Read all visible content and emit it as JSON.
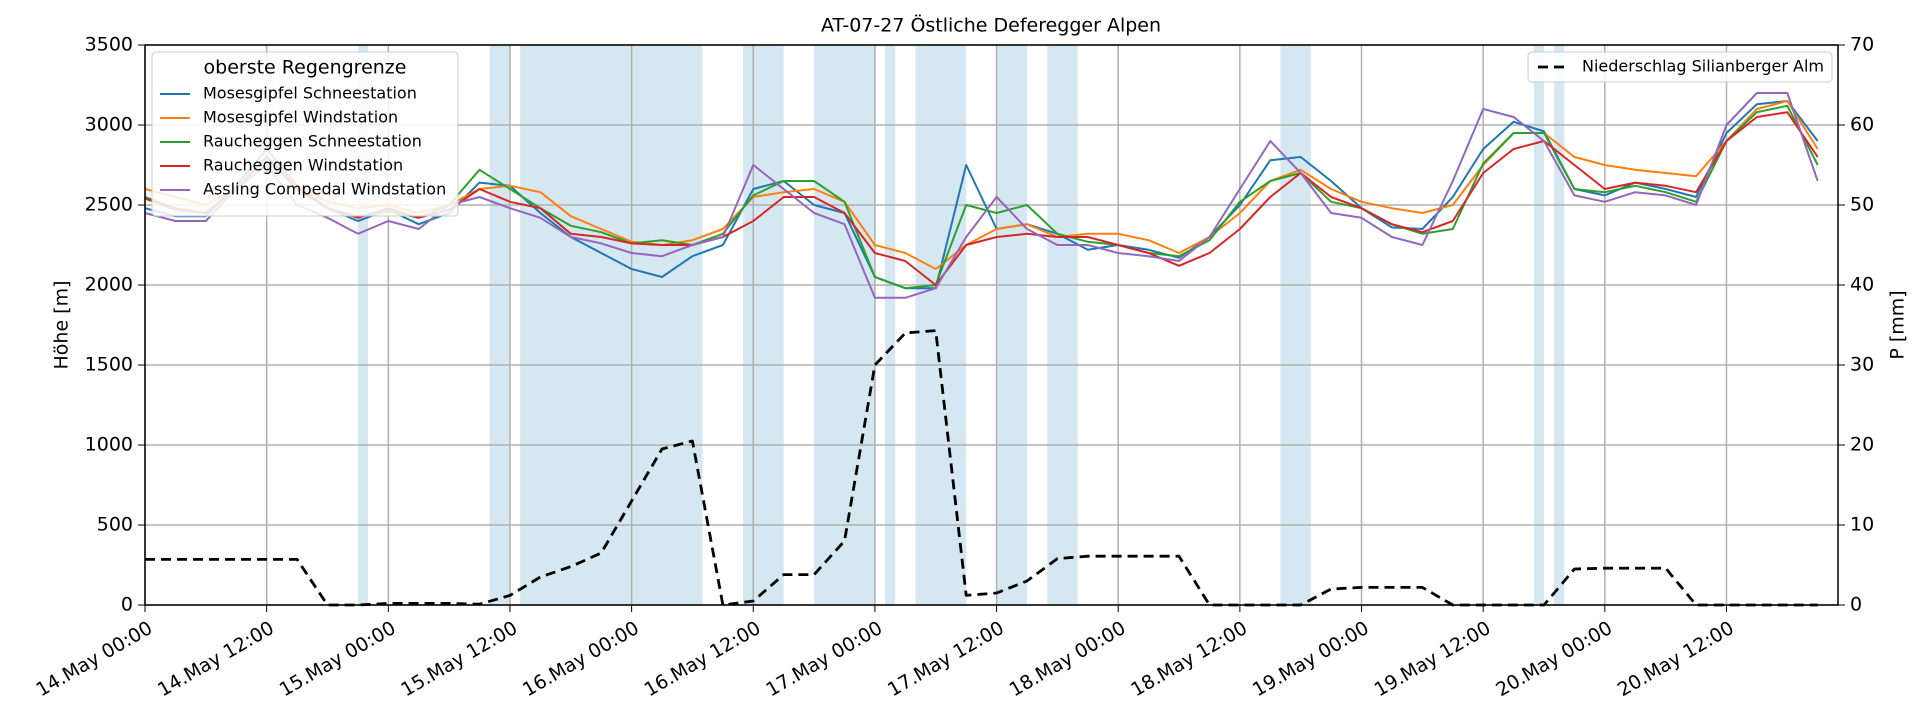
{
  "chart_data": {
    "type": "line",
    "title": "AT-07-27 Östliche Deferegger Alpen",
    "ylabel": "Höhe [m]",
    "y2label": "P [mm]",
    "legend_title": "oberste  Regengrenze",
    "legend": "upper left",
    "grid": true,
    "xlim": [
      "14.May 00:00",
      "20.May 23:00"
    ],
    "xticks": [
      "14.May 00:00",
      "14.May 12:00",
      "15.May 00:00",
      "15.May 12:00",
      "16.May 00:00",
      "16.May 12:00",
      "17.May 00:00",
      "17.May 12:00",
      "18.May 00:00",
      "18.May 12:00",
      "19.May 00:00",
      "19.May 12:00",
      "20.May 00:00",
      "20.May 12:00"
    ],
    "ylim": [
      0,
      3500
    ],
    "yticks": [
      0,
      500,
      1000,
      1500,
      2000,
      2500,
      3000,
      3500
    ],
    "y2lim": [
      0,
      70
    ],
    "y2ticks": [
      0,
      10,
      20,
      30,
      40,
      50,
      60,
      70
    ],
    "span_color": "#d5e7f1",
    "spans": [
      [
        "14.May 21:00",
        "14.May 22:00"
      ],
      [
        "15.May 10:00",
        "15.May 12:00"
      ],
      [
        "15.May 13:00",
        "16.May 07:00"
      ],
      [
        "16.May 11:00",
        "16.May 15:00"
      ],
      [
        "16.May 18:00",
        "17.May 00:00"
      ],
      [
        "17.May 01:00",
        "17.May 02:00"
      ],
      [
        "17.May 04:00",
        "17.May 09:00"
      ],
      [
        "17.May 12:00",
        "17.May 15:00"
      ],
      [
        "17.May 17:00",
        "17.May 20:00"
      ],
      [
        "18.May 16:00",
        "18.May 19:00"
      ],
      [
        "19.May 17:00",
        "19.May 18:00"
      ],
      [
        "19.May 19:00",
        "19.May 20:00"
      ]
    ],
    "x": [
      "14.May 00:00",
      "14.May 03:00",
      "14.May 06:00",
      "14.May 09:00",
      "14.May 12:00",
      "14.May 15:00",
      "14.May 18:00",
      "14.May 21:00",
      "15.May 00:00",
      "15.May 03:00",
      "15.May 06:00",
      "15.May 09:00",
      "15.May 12:00",
      "15.May 15:00",
      "15.May 18:00",
      "15.May 21:00",
      "16.May 00:00",
      "16.May 03:00",
      "16.May 06:00",
      "16.May 09:00",
      "16.May 12:00",
      "16.May 15:00",
      "16.May 18:00",
      "16.May 21:00",
      "17.May 00:00",
      "17.May 03:00",
      "17.May 06:00",
      "17.May 09:00",
      "17.May 12:00",
      "17.May 15:00",
      "17.May 18:00",
      "17.May 21:00",
      "18.May 00:00",
      "18.May 03:00",
      "18.May 06:00",
      "18.May 09:00",
      "18.May 12:00",
      "18.May 15:00",
      "18.May 18:00",
      "18.May 21:00",
      "19.May 00:00",
      "19.May 03:00",
      "19.May 06:00",
      "19.May 09:00",
      "19.May 12:00",
      "19.May 15:00",
      "19.May 18:00",
      "19.May 21:00",
      "20.May 00:00",
      "20.May 03:00",
      "20.May 06:00",
      "20.May 09:00",
      "20.May 12:00",
      "20.May 15:00",
      "20.May 18:00",
      "20.May 21:00"
    ],
    "series": [
      {
        "name": "Mosesgipfel Schneestation",
        "color": "#1f77b4",
        "values": [
          2480,
          2430,
          2430,
          2620,
          2850,
          2620,
          2480,
          2400,
          2470,
          2380,
          2450,
          2640,
          2620,
          2450,
          2300,
          2200,
          2100,
          2050,
          2180,
          2250,
          2600,
          2650,
          2500,
          2450,
          2050,
          1980,
          1980,
          2750,
          2350,
          2380,
          2320,
          2220,
          2250,
          2220,
          2170,
          2300,
          2500,
          2780,
          2800,
          2650,
          2480,
          2360,
          2350,
          2550,
          2850,
          3020,
          2960,
          2600,
          2560,
          2640,
          2600,
          2550,
          2950,
          3130,
          3150,
          2900
        ]
      },
      {
        "name": "Mosesgipfel Windstation",
        "color": "#ff7f0e",
        "values": [
          2600,
          2550,
          2500,
          2600,
          2800,
          2620,
          2520,
          2480,
          2500,
          2450,
          2500,
          2600,
          2620,
          2580,
          2430,
          2350,
          2270,
          2250,
          2280,
          2350,
          2550,
          2580,
          2600,
          2520,
          2250,
          2200,
          2100,
          2250,
          2350,
          2380,
          2300,
          2320,
          2320,
          2280,
          2200,
          2300,
          2450,
          2650,
          2720,
          2600,
          2520,
          2480,
          2450,
          2500,
          2750,
          2950,
          2950,
          2800,
          2750,
          2720,
          2700,
          2680,
          2900,
          3100,
          3150,
          2850
        ]
      },
      {
        "name": "Raucheggen Schneestation",
        "color": "#2ca02c",
        "values": [
          2550,
          2480,
          2450,
          2600,
          2800,
          2600,
          2480,
          2430,
          2460,
          2420,
          2500,
          2720,
          2600,
          2480,
          2370,
          2330,
          2260,
          2280,
          2250,
          2320,
          2560,
          2650,
          2650,
          2520,
          2050,
          1980,
          2000,
          2500,
          2450,
          2500,
          2320,
          2270,
          2250,
          2200,
          2180,
          2280,
          2520,
          2650,
          2700,
          2520,
          2480,
          2380,
          2320,
          2350,
          2760,
          2950,
          2950,
          2600,
          2580,
          2620,
          2580,
          2520,
          2900,
          3080,
          3120,
          2750
        ]
      },
      {
        "name": "Raucheggen Windstation",
        "color": "#d62728",
        "values": [
          2540,
          2470,
          2450,
          2600,
          2800,
          2600,
          2480,
          2420,
          2480,
          2420,
          2470,
          2600,
          2520,
          2480,
          2320,
          2300,
          2260,
          2250,
          2250,
          2300,
          2400,
          2550,
          2550,
          2450,
          2200,
          2150,
          2000,
          2250,
          2300,
          2320,
          2300,
          2300,
          2250,
          2200,
          2120,
          2200,
          2350,
          2550,
          2700,
          2550,
          2480,
          2380,
          2330,
          2400,
          2700,
          2850,
          2900,
          2750,
          2600,
          2640,
          2620,
          2580,
          2900,
          3050,
          3080,
          2800
        ]
      },
      {
        "name": "Assling Compedal Windstation",
        "color": "#9467bd",
        "values": [
          2450,
          2400,
          2400,
          2600,
          2750,
          2500,
          2420,
          2320,
          2400,
          2350,
          2500,
          2550,
          2480,
          2420,
          2300,
          2260,
          2200,
          2180,
          2250,
          2300,
          2750,
          2600,
          2450,
          2380,
          1920,
          1920,
          1980,
          2300,
          2550,
          2350,
          2250,
          2250,
          2200,
          2180,
          2150,
          2300,
          2600,
          2900,
          2700,
          2450,
          2420,
          2300,
          2250,
          2650,
          3100,
          3050,
          2900,
          2560,
          2520,
          2580,
          2560,
          2500,
          3000,
          3200,
          3200,
          2650
        ]
      },
      {
        "name": "Niederschlag Silianberger Alm",
        "color": "#000000",
        "axis": "y2",
        "linestyle": "dashed",
        "legend": "upper right",
        "values": [
          5.7,
          5.7,
          5.7,
          5.7,
          5.7,
          5.7,
          0,
          0,
          0.2,
          0.2,
          0.2,
          0.1,
          1.2,
          3.5,
          4.8,
          6.5,
          13,
          19.5,
          20.5,
          0,
          0.5,
          3.8,
          3.8,
          8,
          30,
          34,
          34.3,
          1.2,
          1.5,
          3,
          5.8,
          6.1,
          6.1,
          6.1,
          6.1,
          0,
          0,
          0,
          0,
          2,
          2.2,
          2.2,
          2.2,
          0,
          0,
          0,
          0,
          4.5,
          4.6,
          4.6,
          4.6,
          0,
          0,
          0,
          0,
          0
        ]
      }
    ]
  }
}
